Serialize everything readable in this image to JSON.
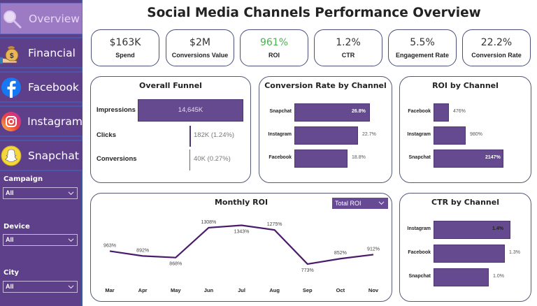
{
  "title": "Social Media Channels Performance Overview",
  "sidebar": {
    "nav": [
      {
        "label": "Overview",
        "icon": "magnifier-icon",
        "active": true
      },
      {
        "label": "Financial",
        "icon": "money-bag-icon",
        "active": false
      },
      {
        "label": "Facebook",
        "icon": "facebook-icon",
        "active": false
      },
      {
        "label": "Instagram",
        "icon": "instagram-icon",
        "active": false
      },
      {
        "label": "Snapchat",
        "icon": "snapchat-icon",
        "active": false
      }
    ],
    "filters": [
      {
        "label": "Campaign",
        "value": "All"
      },
      {
        "label": "Device",
        "value": "All"
      },
      {
        "label": "City",
        "value": "All"
      }
    ]
  },
  "kpis": [
    {
      "value": "$163K",
      "label": "Spend"
    },
    {
      "value": "$2M",
      "label": "Conversions Value"
    },
    {
      "value": "961%",
      "label": "ROI",
      "color": "#4caf50"
    },
    {
      "value": "1.2%",
      "label": "CTR"
    },
    {
      "value": "5.5%",
      "label": "Engagement Rate"
    },
    {
      "value": "22.2%",
      "label": "Conversion Rate"
    }
  ],
  "colors": {
    "accent": "#654a8f",
    "sidebar": "#5e3f8a",
    "line": "#4b1a6b",
    "kpi_green": "#4caf50"
  },
  "funnel": {
    "title": "Overall Funnel",
    "stages": [
      {
        "label": "Impressions",
        "value": "14,645K"
      },
      {
        "label": "Clicks",
        "value": "182K (1.24%)"
      },
      {
        "label": "Conversions",
        "value": "40K (0.27%)"
      }
    ]
  },
  "monthly_dropdown": {
    "value": "Total ROI"
  },
  "chart_data": [
    {
      "type": "bar",
      "title": "Conversion Rate by Channel",
      "categories": [
        "Snapchat",
        "Instagram",
        "Facebook"
      ],
      "values": [
        26.8,
        22.7,
        18.8
      ],
      "labels": [
        "26.8%",
        "22.7%",
        "18.8%"
      ],
      "orientation": "horizontal",
      "xlim": [
        0,
        26.8
      ]
    },
    {
      "type": "bar",
      "title": "ROI by Channel",
      "categories": [
        "Facebook",
        "Instagram",
        "Snapchat"
      ],
      "values": [
        476,
        980,
        2147
      ],
      "labels": [
        "476%",
        "980%",
        "2147%"
      ],
      "orientation": "horizontal",
      "xlim": [
        0,
        2147
      ]
    },
    {
      "type": "line",
      "title": "Monthly ROI",
      "categories": [
        "Mar",
        "Apr",
        "May",
        "Jun",
        "Jul",
        "Aug",
        "Sep",
        "Oct",
        "Nov"
      ],
      "values": [
        963,
        892,
        868,
        1308,
        1343,
        1275,
        773,
        852,
        912
      ],
      "labels": [
        "963%",
        "892%",
        "868%",
        "1308%",
        "1343%",
        "1275%",
        "773%",
        "852%",
        "912%"
      ],
      "ylim": [
        700,
        1400
      ],
      "grid": false
    },
    {
      "type": "bar",
      "title": "CTR by Channel",
      "categories": [
        "Instagram",
        "Facebook",
        "Snapchat"
      ],
      "values": [
        1.4,
        1.3,
        1.0
      ],
      "labels": [
        "1.4%",
        "1.3%",
        "1.0%"
      ],
      "orientation": "horizontal",
      "xlim": [
        0,
        1.4
      ]
    }
  ]
}
